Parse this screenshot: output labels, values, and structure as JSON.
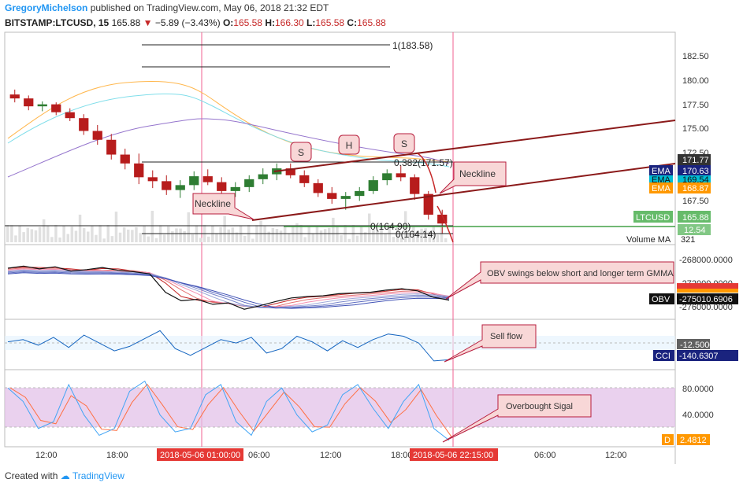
{
  "header": {
    "author": "GregoryMichelson",
    "published_text": "published on TradingView.com, May 06, 2018 21:32 EDT"
  },
  "ticker": {
    "symbol": "BITSTAMP:LTCUSD, 15",
    "last": "165.88",
    "change_arrow": "▼",
    "change": "−5.89 (−3.43%)",
    "o_label": "O:",
    "o": "165.58",
    "h_label": "H:",
    "h": "166.30",
    "l_label": "L:",
    "l": "165.58",
    "c_label": "C:",
    "c": "165.88"
  },
  "colors": {
    "up": "#2e7d32",
    "down": "#b71c1c",
    "accent": "#2196f3",
    "trendline": "#8b1a1a",
    "callout_fill": "#f8d7d7",
    "callout_border": "#b71c3c",
    "ema_navy": "#1a237e",
    "ema_cyan": "#00bcd4",
    "ema_orange": "#ff9800",
    "stoch_band": "#e1bee7",
    "support_line": "#43a047"
  },
  "chart_data": [
    {
      "type": "candlestick",
      "pane": "price",
      "symbol": "LTCUSD",
      "ylim": [
        164,
        185
      ],
      "yticks": [
        "182.50",
        "180.00",
        "177.50",
        "175.00",
        "172.50",
        "167.50"
      ],
      "last_price": "165.88",
      "ema_values": [
        "170.63",
        "169.54",
        "168.87"
      ],
      "ema_label": "EMA",
      "price_tag_value": "171.77",
      "volume_ma_label": "Volume MA",
      "volume_ma_value": "321",
      "volume_tag_value": "12.54",
      "ohlc": [
        [
          179.0,
          179.5,
          178.2,
          178.6
        ],
        [
          178.6,
          178.9,
          177.4,
          177.8
        ],
        [
          177.8,
          178.3,
          177.3,
          178.0
        ],
        [
          178.0,
          178.2,
          176.9,
          177.2
        ],
        [
          177.2,
          177.6,
          176.3,
          176.6
        ],
        [
          176.6,
          177.0,
          174.9,
          175.3
        ],
        [
          175.3,
          175.9,
          173.9,
          174.4
        ],
        [
          174.4,
          175.0,
          172.4,
          172.9
        ],
        [
          172.9,
          173.5,
          171.4,
          172.0
        ],
        [
          172.0,
          173.0,
          169.9,
          170.6
        ],
        [
          170.6,
          171.3,
          169.5,
          170.2
        ],
        [
          170.2,
          170.8,
          168.8,
          169.3
        ],
        [
          169.3,
          170.3,
          168.5,
          169.8
        ],
        [
          169.8,
          171.2,
          169.3,
          170.7
        ],
        [
          170.7,
          171.4,
          169.8,
          170.1
        ],
        [
          170.1,
          170.6,
          168.8,
          169.2
        ],
        [
          169.2,
          170.1,
          168.6,
          169.6
        ],
        [
          169.6,
          170.8,
          169.1,
          170.4
        ],
        [
          170.4,
          171.5,
          169.9,
          170.9
        ],
        [
          170.9,
          172.0,
          170.3,
          171.5
        ],
        [
          171.5,
          172.0,
          170.5,
          170.8
        ],
        [
          170.8,
          171.3,
          169.6,
          170.0
        ],
        [
          170.0,
          170.4,
          168.6,
          169.0
        ],
        [
          169.0,
          169.6,
          167.9,
          168.4
        ],
        [
          168.4,
          169.1,
          167.3,
          168.7
        ],
        [
          168.7,
          169.6,
          168.2,
          169.2
        ],
        [
          169.2,
          170.7,
          168.9,
          170.3
        ],
        [
          170.3,
          171.4,
          169.8,
          171.0
        ],
        [
          171.0,
          171.8,
          170.2,
          170.6
        ],
        [
          170.6,
          170.9,
          168.3,
          168.9
        ],
        [
          168.9,
          169.2,
          166.3,
          166.8
        ],
        [
          166.8,
          167.3,
          164.9,
          165.9
        ]
      ],
      "x_tick_labels": [
        "12:00",
        "18:00",
        "2018-05-06 01:00:00",
        "06:00",
        "12:00",
        "18:00",
        "2018-05-06 22:15:00",
        "06:00",
        "12:00"
      ],
      "annotations": {
        "fib_top": "1(183.58)",
        "fib_mid": "0.382(171.57)",
        "fib_zero_a": "0(164.90)",
        "fib_zero_b": "0(164.14)",
        "shoulder_left": "S",
        "head": "H",
        "shoulder_right": "S",
        "neckline_left": "Neckline",
        "neckline_right": "Neckline"
      }
    },
    {
      "type": "line",
      "pane": "obv",
      "yticks": [
        "-268000.0000",
        "-272000.0000",
        "-276000.0000"
      ],
      "obv_label": "OBV",
      "obv_value": "-275010.6906",
      "callout": "OBV swings below short and longer term GMMA",
      "series": [
        {
          "name": "OBV",
          "values": [
            -270500,
            -270200,
            -270600,
            -270300,
            -270900,
            -270700,
            -270400,
            -270800,
            -271000,
            -271300,
            -273900,
            -275100,
            -274900,
            -275600,
            -275400,
            -276300,
            -275800,
            -275200,
            -274700,
            -274500,
            -274400,
            -274100,
            -274000,
            -273900,
            -273600,
            -273400,
            -273700,
            -274600,
            -275010
          ]
        }
      ]
    },
    {
      "type": "line",
      "pane": "cci",
      "cci_label": "CCI",
      "cci_value": "-140.6307",
      "cci_level": "-12.5000",
      "callout": "Sell flow",
      "series": [
        {
          "name": "CCI",
          "values": [
            20,
            40,
            -10,
            60,
            -30,
            80,
            10,
            -60,
            -20,
            50,
            120,
            -40,
            -100,
            -30,
            40,
            10,
            60,
            -80,
            -40,
            70,
            20,
            -60,
            30,
            -30,
            40,
            90,
            70,
            10,
            -150,
            -140
          ]
        }
      ]
    },
    {
      "type": "line",
      "pane": "stoch",
      "ylim": [
        0,
        100
      ],
      "yticks": [
        "80.0000",
        "40.0000"
      ],
      "d_label": "D",
      "d_value": "2.4812",
      "callout": "Overbought Sigal",
      "series": [
        {
          "name": "D",
          "values": [
            80,
            60,
            20,
            30,
            85,
            40,
            10,
            20,
            75,
            90,
            40,
            15,
            20,
            70,
            85,
            30,
            10,
            60,
            80,
            40,
            15,
            25,
            70,
            85,
            50,
            20,
            60,
            85,
            20,
            2.5
          ]
        }
      ]
    }
  ],
  "footer": {
    "created_with": "Created with",
    "brand": "TradingView"
  }
}
